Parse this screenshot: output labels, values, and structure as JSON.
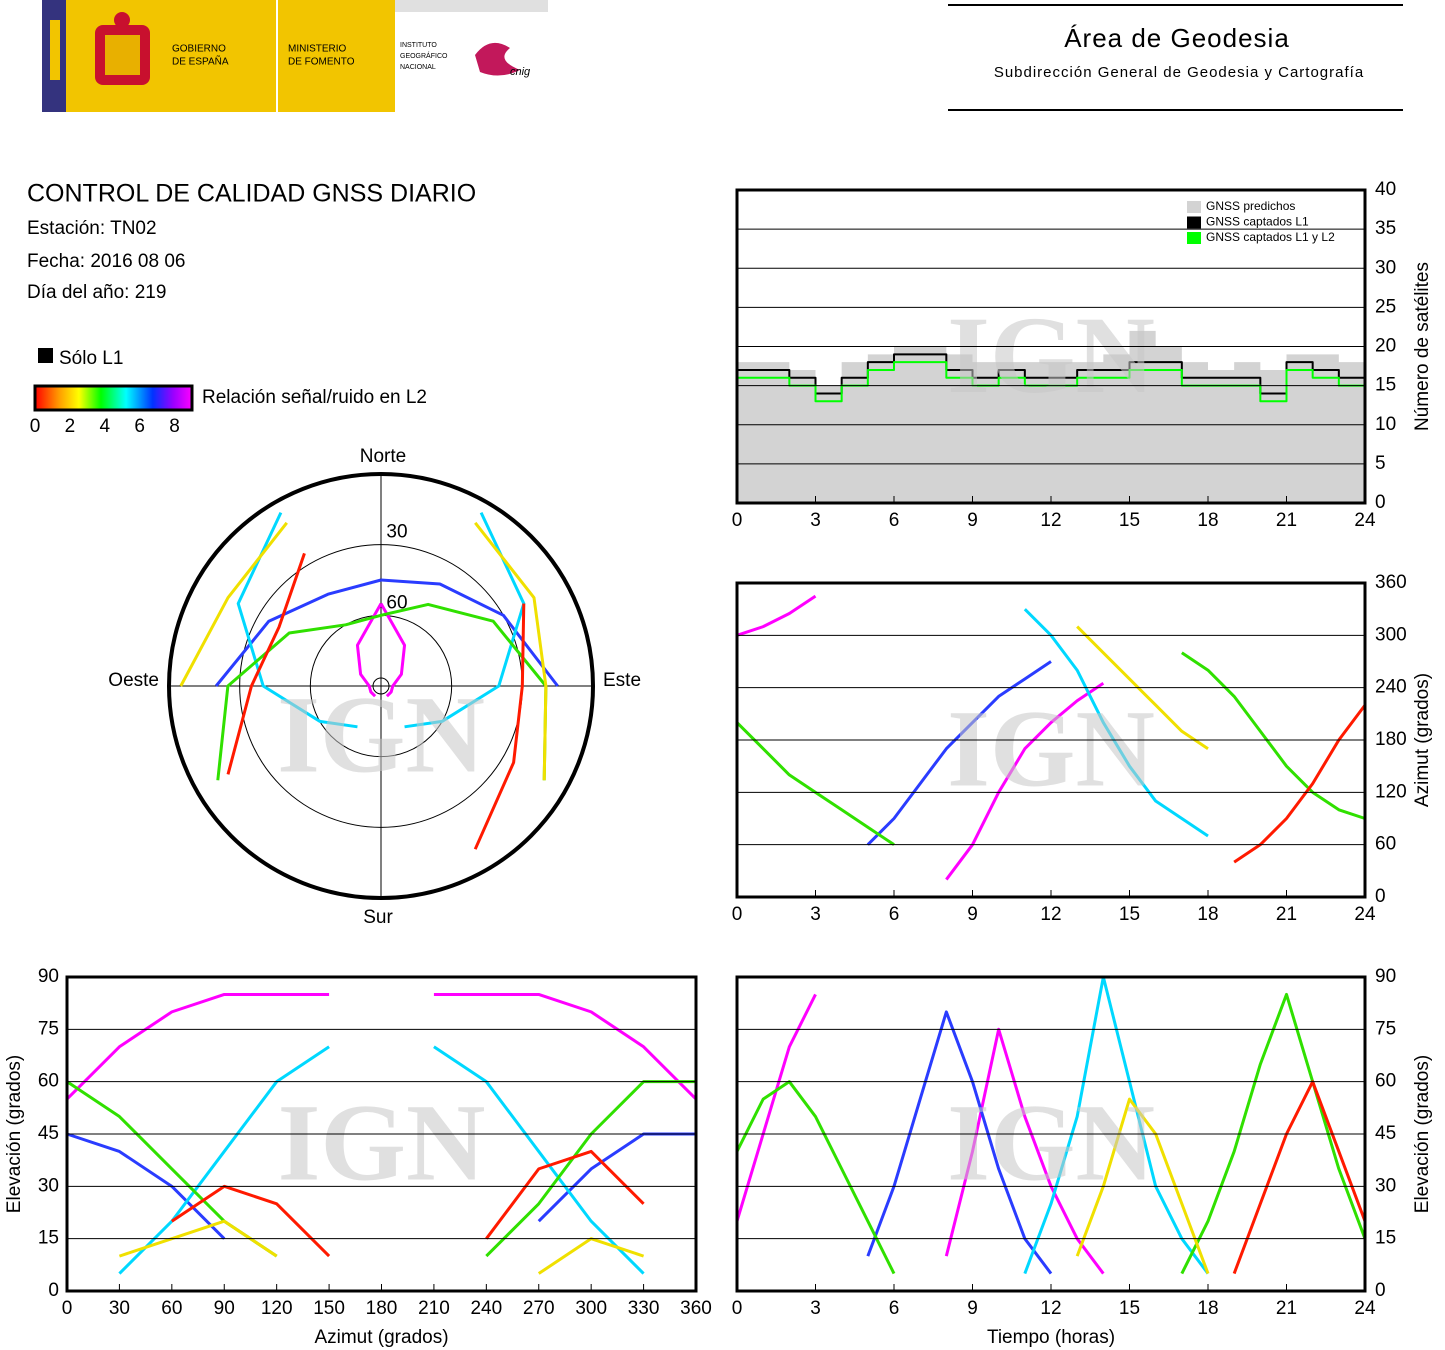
{
  "header": {
    "gov_lines": [
      "GOBIERNO",
      "DE ESPAÑA"
    ],
    "ministry_lines": [
      "MINISTERIO",
      "DE FOMENTO"
    ],
    "institute_lines": [
      "INSTITUTO",
      "GEOGRÁFICO",
      "NACIONAL"
    ],
    "cnig": "cnig",
    "title": "Área de Geodesia",
    "subtitle": "Subdirección General de Geodesia y Cartografía"
  },
  "report": {
    "title": "CONTROL DE CALIDAD GNSS DIARIO",
    "station": "Estación: TN02",
    "date": "Fecha: 2016 08 06",
    "doy": "Día del año: 219",
    "legend_l1": "Sólo L1",
    "colorbar_label": "Relación señal/ruido en L2",
    "colorbar_lim": [
      0,
      9
    ],
    "colorbar_ticks": [
      0,
      2,
      4,
      6,
      8
    ]
  },
  "chart_data": [
    {
      "type": "polar",
      "watermark": "IGN",
      "directions": {
        "north": "Norte",
        "south": "Sur",
        "east": "Este",
        "west": "Oeste"
      },
      "rlim": [
        0,
        90
      ],
      "rticks": [
        30,
        60
      ],
      "x": [
        0,
        30,
        60,
        90,
        120,
        150,
        180,
        210,
        240,
        270,
        300,
        330,
        360
      ],
      "series": [
        {
          "color": "#ff00ff",
          "values": [
            55,
            70,
            80,
            85,
            85,
            85,
            null,
            85,
            85,
            85,
            80,
            70,
            55
          ]
        },
        {
          "color": "#2a3cff",
          "values": [
            45,
            40,
            30,
            15,
            null,
            null,
            null,
            null,
            null,
            20,
            35,
            45,
            45
          ]
        },
        {
          "color": "#00d8ff",
          "values": [
            null,
            5,
            20,
            40,
            60,
            70,
            null,
            70,
            60,
            40,
            20,
            5,
            null
          ]
        },
        {
          "color": "#30e000",
          "values": [
            60,
            50,
            35,
            20,
            10,
            null,
            null,
            null,
            10,
            25,
            45,
            60,
            60
          ]
        },
        {
          "color": "#ff1a00",
          "values": [
            null,
            null,
            20,
            30,
            25,
            10,
            null,
            null,
            15,
            35,
            40,
            25,
            null
          ]
        },
        {
          "color": "#f0e000",
          "values": [
            null,
            10,
            15,
            20,
            10,
            null,
            null,
            null,
            null,
            5,
            15,
            10,
            null
          ]
        }
      ]
    },
    {
      "type": "line",
      "watermark": "IGN",
      "ylabel": "Número de satélites",
      "yaxis_side": "right",
      "grid": true,
      "legend": "top-right",
      "x": [
        0,
        1,
        2,
        3,
        4,
        5,
        6,
        7,
        8,
        9,
        10,
        11,
        12,
        13,
        14,
        15,
        16,
        17,
        18,
        19,
        20,
        21,
        22,
        23,
        24
      ],
      "xlim": [
        0,
        24
      ],
      "xticks": [
        0,
        3,
        6,
        9,
        12,
        15,
        18,
        21,
        24
      ],
      "ylim": [
        0,
        40
      ],
      "yticks": [
        0,
        5,
        10,
        15,
        20,
        25,
        30,
        35,
        40
      ],
      "series": [
        {
          "name": "GNSS predichos",
          "color": "#d3d3d3",
          "style": "step",
          "area": true,
          "values": [
            18,
            18,
            17,
            15,
            18,
            19,
            20,
            20,
            19,
            18,
            18,
            18,
            18,
            18,
            19,
            22,
            20,
            18,
            17,
            18,
            17,
            19,
            19,
            18,
            18
          ]
        },
        {
          "name": "GNSS captados L1",
          "color": "#000000",
          "style": "step",
          "values": [
            17,
            17,
            16,
            14,
            16,
            18,
            19,
            19,
            17,
            16,
            17,
            16,
            16,
            17,
            17,
            18,
            18,
            16,
            16,
            16,
            14,
            18,
            17,
            16,
            17
          ]
        },
        {
          "name": "GNSS captados L1 y L2",
          "color": "#00ff00",
          "style": "step",
          "values": [
            16,
            16,
            15,
            13,
            15,
            17,
            18,
            18,
            16,
            15,
            16,
            15,
            15,
            16,
            16,
            17,
            17,
            15,
            15,
            15,
            13,
            17,
            16,
            15,
            16
          ]
        }
      ]
    },
    {
      "type": "line",
      "watermark": "IGN",
      "ylabel": "Azimut (grados)",
      "yaxis_side": "right",
      "grid": true,
      "x": [
        0,
        1,
        2,
        3,
        4,
        5,
        6,
        7,
        8,
        9,
        10,
        11,
        12,
        13,
        14,
        15,
        16,
        17,
        18,
        19,
        20,
        21,
        22,
        23,
        24
      ],
      "xlim": [
        0,
        24
      ],
      "xticks": [
        0,
        3,
        6,
        9,
        12,
        15,
        18,
        21,
        24
      ],
      "ylim": [
        0,
        360
      ],
      "yticks": [
        0,
        60,
        120,
        180,
        240,
        300,
        360
      ],
      "series": [
        {
          "color": "#ff00ff",
          "values": [
            300,
            310,
            325,
            345,
            null,
            null,
            null,
            null,
            20,
            60,
            120,
            170,
            200,
            225,
            245,
            null,
            null,
            null,
            null,
            null,
            null,
            null,
            null,
            null,
            null
          ]
        },
        {
          "color": "#2a3cff",
          "values": [
            null,
            null,
            null,
            null,
            null,
            60,
            90,
            130,
            170,
            200,
            230,
            250,
            270,
            null,
            null,
            null,
            null,
            null,
            null,
            null,
            null,
            null,
            null,
            null,
            null
          ]
        },
        {
          "color": "#00d8ff",
          "values": [
            null,
            null,
            null,
            null,
            null,
            null,
            null,
            null,
            null,
            null,
            null,
            330,
            300,
            260,
            200,
            150,
            110,
            90,
            70,
            null,
            null,
            null,
            null,
            null,
            null
          ]
        },
        {
          "color": "#30e000",
          "values": [
            200,
            170,
            140,
            120,
            100,
            80,
            60,
            null,
            null,
            null,
            null,
            null,
            null,
            null,
            null,
            null,
            null,
            280,
            260,
            230,
            190,
            150,
            120,
            100,
            90
          ]
        },
        {
          "color": "#ff1a00",
          "values": [
            null,
            null,
            null,
            null,
            null,
            null,
            null,
            null,
            null,
            null,
            null,
            null,
            null,
            null,
            null,
            null,
            null,
            null,
            null,
            40,
            60,
            90,
            130,
            180,
            220
          ]
        },
        {
          "color": "#f0e000",
          "values": [
            null,
            null,
            null,
            null,
            null,
            null,
            null,
            null,
            null,
            null,
            null,
            null,
            null,
            310,
            280,
            250,
            220,
            190,
            170,
            null,
            null,
            null,
            null,
            null,
            null
          ]
        }
      ]
    },
    {
      "type": "line",
      "watermark": "IGN",
      "xlabel": "Azimut (grados)",
      "ylabel": "Elevación (grados)",
      "yaxis_side": "left",
      "grid": true,
      "x": [
        0,
        30,
        60,
        90,
        120,
        150,
        180,
        210,
        240,
        270,
        300,
        330,
        360
      ],
      "xlim": [
        0,
        360
      ],
      "xticks": [
        0,
        30,
        60,
        90,
        120,
        150,
        180,
        210,
        240,
        270,
        300,
        330,
        360
      ],
      "ylim": [
        0,
        90
      ],
      "yticks": [
        0,
        15,
        30,
        45,
        60,
        75,
        90
      ],
      "series": [
        {
          "color": "#ff00ff",
          "values": [
            55,
            70,
            80,
            85,
            85,
            85,
            null,
            85,
            85,
            85,
            80,
            70,
            55
          ]
        },
        {
          "color": "#2a3cff",
          "values": [
            45,
            40,
            30,
            15,
            null,
            null,
            null,
            null,
            null,
            20,
            35,
            45,
            45
          ]
        },
        {
          "color": "#00d8ff",
          "values": [
            null,
            5,
            20,
            40,
            60,
            70,
            null,
            70,
            60,
            40,
            20,
            5,
            null
          ]
        },
        {
          "color": "#30e000",
          "values": [
            60,
            50,
            35,
            20,
            10,
            null,
            null,
            null,
            10,
            25,
            45,
            60,
            60
          ]
        },
        {
          "color": "#ff1a00",
          "values": [
            null,
            null,
            20,
            30,
            25,
            10,
            null,
            null,
            15,
            35,
            40,
            25,
            null
          ]
        },
        {
          "color": "#f0e000",
          "values": [
            null,
            10,
            15,
            20,
            10,
            null,
            null,
            null,
            null,
            5,
            15,
            10,
            null
          ]
        }
      ]
    },
    {
      "type": "line",
      "watermark": "IGN",
      "xlabel": "Tiempo (horas)",
      "ylabel": "Elevación (grados)",
      "yaxis_side": "right",
      "grid": true,
      "x": [
        0,
        1,
        2,
        3,
        4,
        5,
        6,
        7,
        8,
        9,
        10,
        11,
        12,
        13,
        14,
        15,
        16,
        17,
        18,
        19,
        20,
        21,
        22,
        23,
        24
      ],
      "xlim": [
        0,
        24
      ],
      "xticks": [
        0,
        3,
        6,
        9,
        12,
        15,
        18,
        21,
        24
      ],
      "ylim": [
        0,
        90
      ],
      "yticks": [
        0,
        15,
        30,
        45,
        60,
        75,
        90
      ],
      "series": [
        {
          "color": "#ff00ff",
          "values": [
            20,
            45,
            70,
            85,
            null,
            null,
            null,
            null,
            10,
            40,
            75,
            50,
            30,
            15,
            5,
            null,
            null,
            null,
            null,
            null,
            null,
            null,
            null,
            null,
            null
          ]
        },
        {
          "color": "#2a3cff",
          "values": [
            null,
            null,
            null,
            null,
            null,
            10,
            30,
            55,
            80,
            60,
            35,
            15,
            5,
            null,
            null,
            null,
            null,
            null,
            null,
            null,
            null,
            null,
            null,
            null,
            null
          ]
        },
        {
          "color": "#00d8ff",
          "values": [
            null,
            null,
            null,
            null,
            null,
            null,
            null,
            null,
            null,
            null,
            null,
            5,
            25,
            50,
            90,
            60,
            30,
            15,
            5,
            null,
            null,
            null,
            null,
            null,
            null
          ]
        },
        {
          "color": "#30e000",
          "values": [
            40,
            55,
            60,
            50,
            35,
            20,
            5,
            null,
            null,
            null,
            null,
            null,
            null,
            null,
            null,
            null,
            null,
            5,
            20,
            40,
            65,
            85,
            60,
            35,
            15
          ]
        },
        {
          "color": "#ff1a00",
          "values": [
            null,
            null,
            null,
            null,
            null,
            null,
            null,
            null,
            null,
            null,
            null,
            null,
            null,
            null,
            null,
            null,
            null,
            null,
            null,
            5,
            25,
            45,
            60,
            40,
            20
          ]
        },
        {
          "color": "#f0e000",
          "values": [
            null,
            null,
            null,
            null,
            null,
            null,
            null,
            null,
            null,
            null,
            null,
            null,
            null,
            10,
            30,
            55,
            45,
            25,
            5,
            null,
            null,
            null,
            null,
            null,
            null
          ]
        }
      ]
    }
  ]
}
